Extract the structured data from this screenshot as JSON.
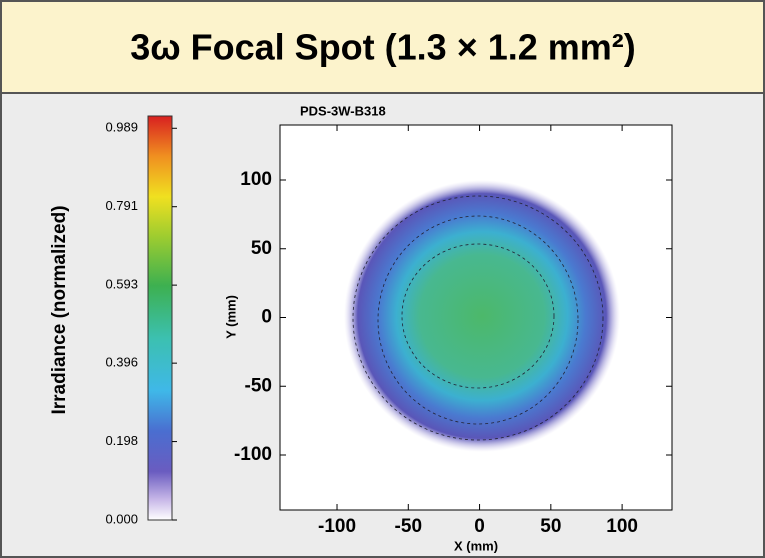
{
  "chart_data": {
    "type": "heatmap",
    "title": "3ω Focal Spot (1.3 × 1.2 mm²)",
    "subtitle": "PDS-3W-B318",
    "xlabel": "X (mm)",
    "ylabel": "Y (mm)",
    "colorbar_label": "Irradiance (normalized)",
    "xlim": [
      -140,
      135
    ],
    "ylim": [
      -140,
      140
    ],
    "xticks": [
      -100,
      -50,
      0,
      50,
      100
    ],
    "yticks": [
      -100,
      -50,
      0,
      50,
      100
    ],
    "clim": [
      0,
      1.02
    ],
    "cticks": [
      {
        "value": 0,
        "label": "0.000"
      },
      0.198,
      0.396,
      0.593,
      0.791,
      0.989
    ]
  }
}
